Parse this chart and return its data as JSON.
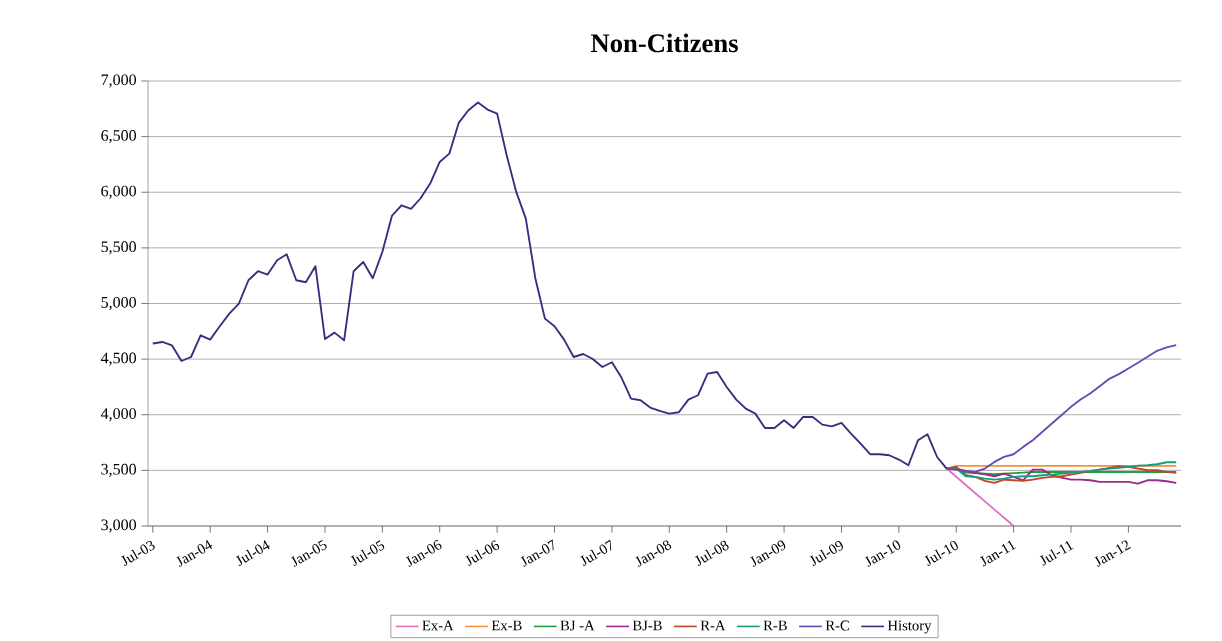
{
  "chart_data": {
    "type": "line",
    "title": "Non-Citizens",
    "categories": [
      "Jul-03",
      null,
      null,
      null,
      null,
      null,
      "Jan-04",
      null,
      null,
      null,
      null,
      null,
      "Jul-04",
      null,
      null,
      null,
      null,
      null,
      "Jan-05",
      null,
      null,
      null,
      null,
      null,
      "Jul-05",
      null,
      null,
      null,
      null,
      null,
      "Jan-06",
      null,
      null,
      null,
      null,
      null,
      "Jul-06",
      null,
      null,
      null,
      null,
      null,
      "Jan-07",
      null,
      null,
      null,
      null,
      null,
      "Jul-07",
      null,
      null,
      null,
      null,
      null,
      "Jan-08",
      null,
      null,
      null,
      null,
      null,
      "Jul-08",
      null,
      null,
      null,
      null,
      null,
      "Jan-09",
      null,
      null,
      null,
      null,
      null,
      "Jul-09",
      null,
      null,
      null,
      null,
      null,
      "Jan-10",
      null,
      null,
      null,
      null,
      null,
      "Jul-10",
      null,
      null,
      null,
      null,
      null,
      "Jan-11",
      null,
      null,
      null,
      null,
      null,
      "Jul-11",
      null,
      null,
      null,
      null,
      null,
      "Jan-12",
      null,
      null,
      null,
      null,
      null
    ],
    "ylim": [
      3000,
      7000
    ],
    "yticks": [
      {
        "value": 3000,
        "label": "3,000"
      },
      {
        "value": 3500,
        "label": "3,500"
      },
      {
        "value": 4000,
        "label": "4,000"
      },
      {
        "value": 4500,
        "label": "4,500"
      },
      {
        "value": 5000,
        "label": "5,000"
      },
      {
        "value": 5500,
        "label": "5,500"
      },
      {
        "value": 6000,
        "label": "6,000"
      },
      {
        "value": 6500,
        "label": "6,500"
      },
      {
        "value": 7000,
        "label": "7,000"
      }
    ],
    "grid": "y",
    "legend": "bottom",
    "series": [
      {
        "name": "Ex-A",
        "color": "#e070c0",
        "values": [
          null,
          null,
          null,
          null,
          null,
          null,
          null,
          null,
          null,
          null,
          null,
          null,
          null,
          null,
          null,
          null,
          null,
          null,
          null,
          null,
          null,
          null,
          null,
          null,
          null,
          null,
          null,
          null,
          null,
          null,
          null,
          null,
          null,
          null,
          null,
          null,
          null,
          null,
          null,
          null,
          null,
          null,
          null,
          null,
          null,
          null,
          null,
          null,
          null,
          null,
          null,
          null,
          null,
          null,
          null,
          null,
          null,
          null,
          null,
          null,
          null,
          null,
          null,
          null,
          null,
          null,
          null,
          null,
          null,
          null,
          null,
          null,
          null,
          null,
          null,
          null,
          null,
          null,
          null,
          null,
          null,
          null,
          null,
          3516,
          3442,
          3368,
          3295,
          3221,
          3147,
          3074,
          3000,
          null,
          null,
          null,
          null,
          null,
          null,
          null,
          null,
          null,
          null,
          null,
          null,
          null,
          null,
          null,
          null,
          null
        ]
      },
      {
        "name": "Ex-B",
        "color": "#f7903a",
        "values": [
          null,
          null,
          null,
          null,
          null,
          null,
          null,
          null,
          null,
          null,
          null,
          null,
          null,
          null,
          null,
          null,
          null,
          null,
          null,
          null,
          null,
          null,
          null,
          null,
          null,
          null,
          null,
          null,
          null,
          null,
          null,
          null,
          null,
          null,
          null,
          null,
          null,
          null,
          null,
          null,
          null,
          null,
          null,
          null,
          null,
          null,
          null,
          null,
          null,
          null,
          null,
          null,
          null,
          null,
          null,
          null,
          null,
          null,
          null,
          null,
          null,
          null,
          null,
          null,
          null,
          null,
          null,
          null,
          null,
          null,
          null,
          null,
          null,
          null,
          null,
          null,
          null,
          null,
          null,
          null,
          null,
          null,
          null,
          3516,
          3540,
          3540,
          3540,
          3540,
          3540,
          3540,
          3540,
          3540,
          3540,
          3540,
          3540,
          3540,
          3540,
          3540,
          3540,
          3540,
          3540,
          3540,
          3540,
          3540,
          3540,
          3540,
          3540,
          3540
        ]
      },
      {
        "name": "BJ -A",
        "color": "#20a040",
        "values": [
          null,
          null,
          null,
          null,
          null,
          null,
          null,
          null,
          null,
          null,
          null,
          null,
          null,
          null,
          null,
          null,
          null,
          null,
          null,
          null,
          null,
          null,
          null,
          null,
          null,
          null,
          null,
          null,
          null,
          null,
          null,
          null,
          null,
          null,
          null,
          null,
          null,
          null,
          null,
          null,
          null,
          null,
          null,
          null,
          null,
          null,
          null,
          null,
          null,
          null,
          null,
          null,
          null,
          null,
          null,
          null,
          null,
          null,
          null,
          null,
          null,
          null,
          null,
          null,
          null,
          null,
          null,
          null,
          null,
          null,
          null,
          null,
          null,
          null,
          null,
          null,
          null,
          null,
          null,
          null,
          null,
          null,
          null,
          3516,
          3510,
          3480,
          3475,
          3470,
          3465,
          3470,
          3475,
          3480,
          3485,
          3485,
          3485,
          3485,
          3485,
          3485,
          3485,
          3485,
          3485,
          3485,
          3485,
          3485,
          3485,
          3485,
          3485,
          3485
        ]
      },
      {
        "name": "BJ-B",
        "color": "#9b2a8a",
        "values": [
          null,
          null,
          null,
          null,
          null,
          null,
          null,
          null,
          null,
          null,
          null,
          null,
          null,
          null,
          null,
          null,
          null,
          null,
          null,
          null,
          null,
          null,
          null,
          null,
          null,
          null,
          null,
          null,
          null,
          null,
          null,
          null,
          null,
          null,
          null,
          null,
          null,
          null,
          null,
          null,
          null,
          null,
          null,
          null,
          null,
          null,
          null,
          null,
          null,
          null,
          null,
          null,
          null,
          null,
          null,
          null,
          null,
          null,
          null,
          null,
          null,
          null,
          null,
          null,
          null,
          null,
          null,
          null,
          null,
          null,
          null,
          null,
          null,
          null,
          null,
          null,
          null,
          null,
          null,
          null,
          null,
          null,
          null,
          3516,
          3516,
          3495,
          3477,
          3465,
          3447,
          3471,
          3441,
          3411,
          3507,
          3507,
          3456,
          3435,
          3417,
          3417,
          3411,
          3396,
          3396,
          3396,
          3396,
          3381,
          3411,
          3411,
          3402,
          3387
        ]
      },
      {
        "name": "R-A",
        "color": "#c0442a",
        "values": [
          null,
          null,
          null,
          null,
          null,
          null,
          null,
          null,
          null,
          null,
          null,
          null,
          null,
          null,
          null,
          null,
          null,
          null,
          null,
          null,
          null,
          null,
          null,
          null,
          null,
          null,
          null,
          null,
          null,
          null,
          null,
          null,
          null,
          null,
          null,
          null,
          null,
          null,
          null,
          null,
          null,
          null,
          null,
          null,
          null,
          null,
          null,
          null,
          null,
          null,
          null,
          null,
          null,
          null,
          null,
          null,
          null,
          null,
          null,
          null,
          null,
          null,
          null,
          null,
          null,
          null,
          null,
          null,
          null,
          null,
          null,
          null,
          null,
          null,
          null,
          null,
          null,
          null,
          null,
          null,
          null,
          null,
          null,
          3516,
          3531,
          3456,
          3441,
          3405,
          3387,
          3417,
          3411,
          3405,
          3417,
          3432,
          3441,
          3447,
          3462,
          3477,
          3492,
          3507,
          3522,
          3537,
          3531,
          3516,
          3501,
          3501,
          3486,
          3477
        ]
      },
      {
        "name": "R-B",
        "color": "#1a9a80",
        "values": [
          null,
          null,
          null,
          null,
          null,
          null,
          null,
          null,
          null,
          null,
          null,
          null,
          null,
          null,
          null,
          null,
          null,
          null,
          null,
          null,
          null,
          null,
          null,
          null,
          null,
          null,
          null,
          null,
          null,
          null,
          null,
          null,
          null,
          null,
          null,
          null,
          null,
          null,
          null,
          null,
          null,
          null,
          null,
          null,
          null,
          null,
          null,
          null,
          null,
          null,
          null,
          null,
          null,
          null,
          null,
          null,
          null,
          null,
          null,
          null,
          null,
          null,
          null,
          null,
          null,
          null,
          null,
          null,
          null,
          null,
          null,
          null,
          null,
          null,
          null,
          null,
          null,
          null,
          null,
          null,
          null,
          null,
          null,
          3516,
          3516,
          3447,
          3441,
          3426,
          3417,
          3426,
          3441,
          3447,
          3447,
          3456,
          3462,
          3471,
          3477,
          3486,
          3495,
          3507,
          3516,
          3522,
          3531,
          3543,
          3546,
          3555,
          3573,
          3573
        ]
      },
      {
        "name": "R-C",
        "color": "#6a4ab0",
        "values": [
          null,
          null,
          null,
          null,
          null,
          null,
          null,
          null,
          null,
          null,
          null,
          null,
          null,
          null,
          null,
          null,
          null,
          null,
          null,
          null,
          null,
          null,
          null,
          null,
          null,
          null,
          null,
          null,
          null,
          null,
          null,
          null,
          null,
          null,
          null,
          null,
          null,
          null,
          null,
          null,
          null,
          null,
          null,
          null,
          null,
          null,
          null,
          null,
          null,
          null,
          null,
          null,
          null,
          null,
          null,
          null,
          null,
          null,
          null,
          null,
          null,
          null,
          null,
          null,
          null,
          null,
          null,
          null,
          null,
          null,
          null,
          null,
          null,
          null,
          null,
          null,
          null,
          null,
          null,
          null,
          null,
          null,
          null,
          3516,
          3507,
          3495,
          3486,
          3516,
          3576,
          3621,
          3645,
          3711,
          3771,
          3846,
          3921,
          3996,
          4071,
          4137,
          4191,
          4257,
          4323,
          4365,
          4416,
          4467,
          4521,
          4575,
          4605,
          4626
        ]
      },
      {
        "name": "History",
        "color": "#352f80",
        "values": [
          4640,
          4654,
          4624,
          4483,
          4519,
          4714,
          4675,
          4795,
          4909,
          4999,
          5209,
          5290,
          5260,
          5388,
          5442,
          5209,
          5191,
          5335,
          4681,
          4738,
          4669,
          5290,
          5373,
          5227,
          5463,
          5787,
          5883,
          5850,
          5946,
          6078,
          6272,
          6347,
          6626,
          6737,
          6806,
          6743,
          6707,
          6332,
          6003,
          5763,
          5224,
          4864,
          4795,
          4675,
          4519,
          4546,
          4501,
          4429,
          4472,
          4334,
          4145,
          4130,
          4064,
          4034,
          4010,
          4022,
          4136,
          4175,
          4370,
          4384,
          4249,
          4136,
          4055,
          4010,
          3881,
          3881,
          3950,
          3881,
          3980,
          3980,
          3911,
          3896,
          3926,
          3830,
          3740,
          3645,
          3645,
          3636,
          3597,
          3546,
          3770,
          3824,
          3620,
          3516,
          null,
          null,
          null,
          null,
          null,
          null,
          null,
          null,
          null,
          null,
          null,
          null,
          null,
          null,
          null,
          null,
          null,
          null,
          null,
          null,
          null,
          null,
          null,
          null
        ]
      }
    ]
  }
}
